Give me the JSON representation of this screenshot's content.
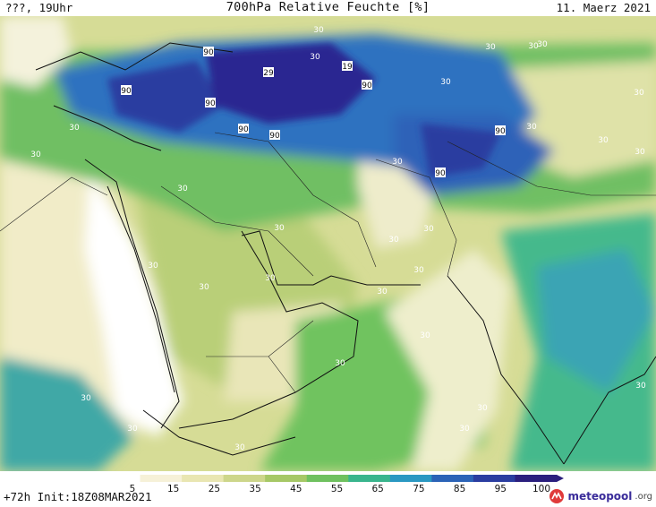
{
  "header": {
    "left": "???, 19Uhr",
    "title": "700hPa Relative Feuchte [%]",
    "date": "11. Maerz 2021"
  },
  "footer": {
    "forecast": "+72h Init:18Z08MAR2021",
    "brand": "meteopool",
    "brand_tld": ".org"
  },
  "legend": {
    "ticks": [
      "5",
      "15",
      "25",
      "35",
      "45",
      "55",
      "65",
      "75",
      "85",
      "95",
      "100"
    ],
    "colors": [
      "#ffffff",
      "#f6f1d8",
      "#e9e6b2",
      "#cdd68b",
      "#a6c866",
      "#6fc15f",
      "#39b58d",
      "#2a98c2",
      "#2b63b7",
      "#2a3da0",
      "#2b1f7e"
    ]
  },
  "map": {
    "contour_labels": [
      "90",
      "90",
      "29",
      "19",
      "90",
      "90",
      "90",
      "90",
      "90",
      "90",
      "30",
      "30",
      "30",
      "30",
      "30",
      "30",
      "30",
      "30",
      "30",
      "30",
      "30",
      "30",
      "30",
      "30",
      "30",
      "30",
      "30",
      "30",
      "30",
      "30",
      "30",
      "30",
      "30",
      "30",
      "30",
      "30",
      "30",
      "30",
      "30",
      "30"
    ]
  }
}
